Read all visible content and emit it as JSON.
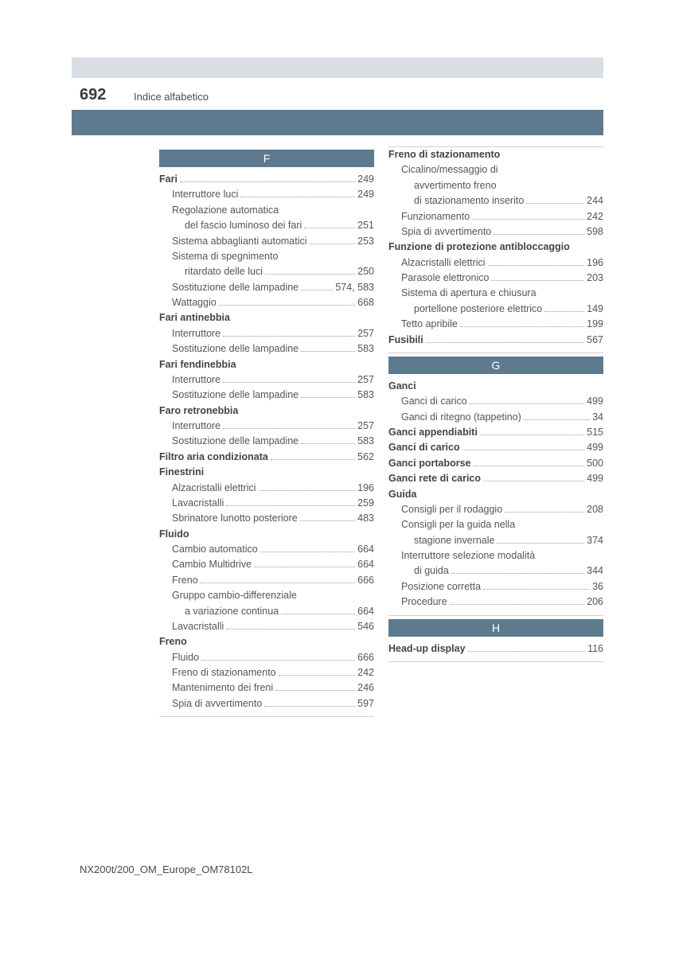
{
  "page_number": "692",
  "page_title": "Indice alfabetico",
  "footer": "NX200t/200_OM_Europe_OM78102L",
  "colors": {
    "header_bar": "#5e7a8f",
    "top_strip": "#d9dee5",
    "text": "#555555",
    "bold_text": "#444444",
    "dots": "#9a9a9a",
    "background": "#ffffff"
  },
  "sections": {
    "F": {
      "letter": "F",
      "items": [
        {
          "t": "Fari",
          "p": "249",
          "s": 0,
          "b": 1,
          "d": 1
        },
        {
          "t": "Interruttore luci",
          "p": "249",
          "s": 1,
          "d": 1
        },
        {
          "t": "Regolazione automatica",
          "s": 1,
          "d": 0
        },
        {
          "t": "del fascio luminoso dei fari",
          "p": "251",
          "s": 2,
          "d": 1
        },
        {
          "t": "Sistema abbaglianti automatici",
          "p": "253",
          "s": 1,
          "d": 1
        },
        {
          "t": "Sistema di spegnimento",
          "s": 1,
          "d": 0
        },
        {
          "t": "ritardato delle luci",
          "p": "250",
          "s": 2,
          "d": 1
        },
        {
          "t": "Sostituzione delle lampadine",
          "p": "574, 583",
          "s": 1,
          "d": 1
        },
        {
          "t": "Wattaggio",
          "p": "668",
          "s": 1,
          "d": 1
        },
        {
          "t": "Fari antinebbia",
          "s": 0,
          "b": 1,
          "d": 0
        },
        {
          "t": "Interruttore",
          "p": "257",
          "s": 1,
          "d": 1
        },
        {
          "t": "Sostituzione delle lampadine",
          "p": "583",
          "s": 1,
          "d": 1
        },
        {
          "t": "Fari fendinebbia",
          "s": 0,
          "b": 1,
          "d": 0
        },
        {
          "t": "Interruttore",
          "p": "257",
          "s": 1,
          "d": 1
        },
        {
          "t": "Sostituzione delle lampadine",
          "p": "583",
          "s": 1,
          "d": 1
        },
        {
          "t": "Faro retronebbia",
          "s": 0,
          "b": 1,
          "d": 0
        },
        {
          "t": "Interruttore",
          "p": "257",
          "s": 1,
          "d": 1
        },
        {
          "t": "Sostituzione delle lampadine",
          "p": "583",
          "s": 1,
          "d": 1
        },
        {
          "t": "Filtro aria condizionata",
          "p": "562",
          "s": 0,
          "b": 1,
          "d": 1
        },
        {
          "t": "Finestrini",
          "s": 0,
          "b": 1,
          "d": 0
        },
        {
          "t": "Alzacristalli elettrici",
          "p": "196",
          "s": 1,
          "d": 1
        },
        {
          "t": "Lavacristalli",
          "p": "259",
          "s": 1,
          "d": 1
        },
        {
          "t": "Sbrinatore lunotto posteriore",
          "p": "483",
          "s": 1,
          "d": 1
        },
        {
          "t": "Fluido",
          "s": 0,
          "b": 1,
          "d": 0
        },
        {
          "t": "Cambio automatico",
          "p": "664",
          "s": 1,
          "d": 1
        },
        {
          "t": "Cambio Multidrive",
          "p": "664",
          "s": 1,
          "d": 1
        },
        {
          "t": "Freno",
          "p": "666",
          "s": 1,
          "d": 1
        },
        {
          "t": "Gruppo cambio-differenziale",
          "s": 1,
          "d": 0
        },
        {
          "t": "a variazione continua",
          "p": "664",
          "s": 2,
          "d": 1
        },
        {
          "t": "Lavacristalli",
          "p": "546",
          "s": 1,
          "d": 1
        },
        {
          "t": "Freno",
          "s": 0,
          "b": 1,
          "d": 0
        },
        {
          "t": "Fluido",
          "p": "666",
          "s": 1,
          "d": 1
        },
        {
          "t": "Freno di stazionamento",
          "p": "242",
          "s": 1,
          "d": 1
        },
        {
          "t": "Mantenimento dei freni",
          "p": "246",
          "s": 1,
          "d": 1
        },
        {
          "t": "Spia di avvertimento",
          "p": "597",
          "s": 1,
          "d": 1
        }
      ]
    },
    "F2": {
      "items": [
        {
          "t": "Freno di stazionamento",
          "s": 0,
          "b": 1,
          "d": 0
        },
        {
          "t": "Cicalino/messaggio di",
          "s": 1,
          "d": 0
        },
        {
          "t": "avvertimento freno",
          "s": 2,
          "d": 0
        },
        {
          "t": "di stazionamento inserito",
          "p": "244",
          "s": 2,
          "d": 1
        },
        {
          "t": "Funzionamento",
          "p": "242",
          "s": 1,
          "d": 1
        },
        {
          "t": "Spia di avvertimento",
          "p": "598",
          "s": 1,
          "d": 1
        },
        {
          "t": "Funzione di protezione antibloccaggio",
          "s": 0,
          "b": 1,
          "d": 0
        },
        {
          "t": "Alzacristalli elettrici",
          "p": "196",
          "s": 1,
          "d": 1
        },
        {
          "t": "Parasole elettronico",
          "p": "203",
          "s": 1,
          "d": 1
        },
        {
          "t": "Sistema di apertura e chiusura",
          "s": 1,
          "d": 0
        },
        {
          "t": "portellone posteriore elettrico",
          "p": "149",
          "s": 2,
          "d": 1
        },
        {
          "t": "Tetto apribile",
          "p": "199",
          "s": 1,
          "d": 1
        },
        {
          "t": "Fusibili",
          "p": "567",
          "s": 0,
          "b": 1,
          "d": 1
        }
      ]
    },
    "G": {
      "letter": "G",
      "items": [
        {
          "t": "Ganci",
          "s": 0,
          "b": 1,
          "d": 0
        },
        {
          "t": "Ganci di carico",
          "p": "499",
          "s": 1,
          "d": 1
        },
        {
          "t": "Ganci di ritegno (tappetino)",
          "p": "34",
          "s": 1,
          "d": 1
        },
        {
          "t": "Ganci appendiabiti",
          "p": "515",
          "s": 0,
          "b": 1,
          "d": 1
        },
        {
          "t": "Ganci di carico",
          "p": "499",
          "s": 0,
          "b": 1,
          "d": 1
        },
        {
          "t": "Ganci portaborse",
          "p": "500",
          "s": 0,
          "b": 1,
          "d": 1
        },
        {
          "t": "Ganci rete di carico",
          "p": "499",
          "s": 0,
          "b": 1,
          "d": 1
        },
        {
          "t": "Guida",
          "s": 0,
          "b": 1,
          "d": 0
        },
        {
          "t": "Consigli per il rodaggio",
          "p": "208",
          "s": 1,
          "d": 1
        },
        {
          "t": "Consigli per la guida nella",
          "s": 1,
          "d": 0
        },
        {
          "t": "stagione invernale",
          "p": "374",
          "s": 2,
          "d": 1
        },
        {
          "t": "Interruttore selezione modalità",
          "s": 1,
          "d": 0
        },
        {
          "t": "di guida",
          "p": "344",
          "s": 2,
          "d": 1
        },
        {
          "t": "Posizione corretta",
          "p": "36",
          "s": 1,
          "d": 1
        },
        {
          "t": "Procedure",
          "p": "206",
          "s": 1,
          "d": 1
        }
      ]
    },
    "H": {
      "letter": "H",
      "items": [
        {
          "t": "Head-up display",
          "p": "116",
          "s": 0,
          "b": 1,
          "d": 1
        }
      ]
    }
  }
}
